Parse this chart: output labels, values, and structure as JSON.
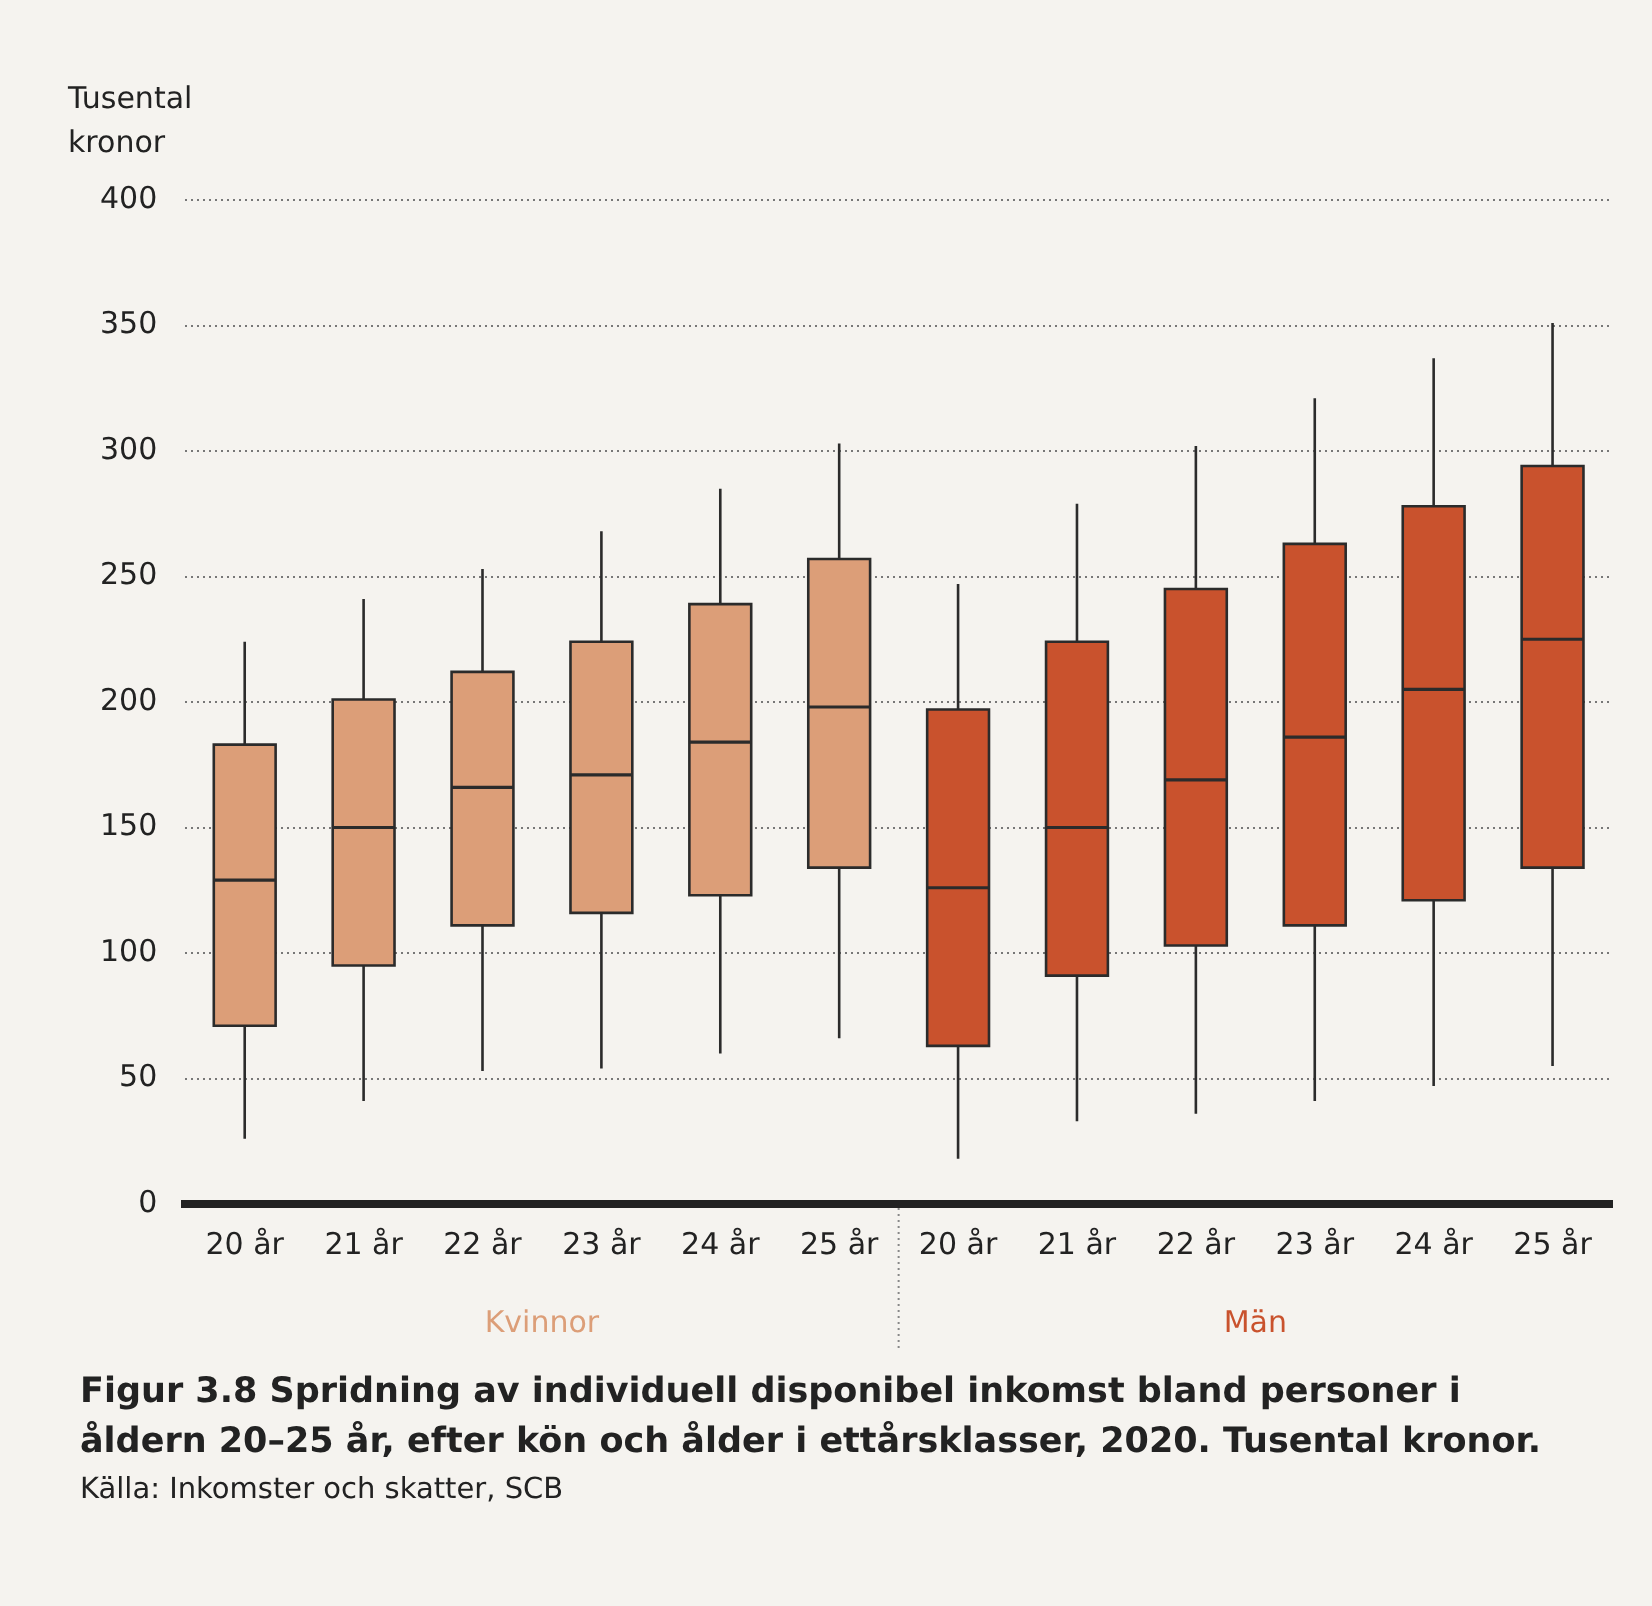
{
  "chart_data": {
    "type": "box",
    "title": "Figur 3.8 Spridning av individuell disponibel inkomst bland personer i åldern 20–25 år, efter kön och ålder i ettårsklasser, 2020. Tusental kronor.",
    "ylabel": "Tusental kronor",
    "annotations": [
      "Källa: Inkomster och skatter, SCB"
    ],
    "categories": [
      "20 år",
      "21 år",
      "22 år",
      "23 år",
      "24 år",
      "25 år",
      "20 år",
      "21 år",
      "22 år",
      "23 år",
      "24 år",
      "25 år"
    ],
    "series": [
      {
        "name": "Kvinnor",
        "color": "#dc9e78",
        "boxes": [
          {
            "low": 26,
            "q1": 71,
            "median": 129,
            "q3": 183,
            "high": 224
          },
          {
            "low": 41,
            "q1": 95,
            "median": 150,
            "q3": 201,
            "high": 241
          },
          {
            "low": 53,
            "q1": 111,
            "median": 166,
            "q3": 212,
            "high": 253
          },
          {
            "low": 54,
            "q1": 116,
            "median": 171,
            "q3": 224,
            "high": 268
          },
          {
            "low": 60,
            "q1": 123,
            "median": 184,
            "q3": 239,
            "high": 285
          },
          {
            "low": 66,
            "q1": 134,
            "median": 198,
            "q3": 257,
            "high": 303
          },
          null,
          null,
          null,
          null,
          null,
          null
        ]
      },
      {
        "name": "Män",
        "color": "#c9522d",
        "boxes": [
          null,
          null,
          null,
          null,
          null,
          null,
          {
            "low": 18,
            "q1": 63,
            "median": 126,
            "q3": 197,
            "high": 247
          },
          {
            "low": 33,
            "q1": 91,
            "median": 150,
            "q3": 224,
            "high": 279
          },
          {
            "low": 36,
            "q1": 103,
            "median": 169,
            "q3": 245,
            "high": 302
          },
          {
            "low": 41,
            "q1": 111,
            "median": 186,
            "q3": 263,
            "high": 321
          },
          {
            "low": 47,
            "q1": 121,
            "median": 205,
            "q3": 278,
            "high": 337
          },
          {
            "low": 55,
            "q1": 134,
            "median": 225,
            "q3": 294,
            "high": 351
          }
        ]
      }
    ],
    "ylim": [
      0,
      400
    ],
    "yticks": [
      0,
      50,
      100,
      150,
      200,
      250,
      300,
      350,
      400
    ],
    "grid": "y"
  }
}
